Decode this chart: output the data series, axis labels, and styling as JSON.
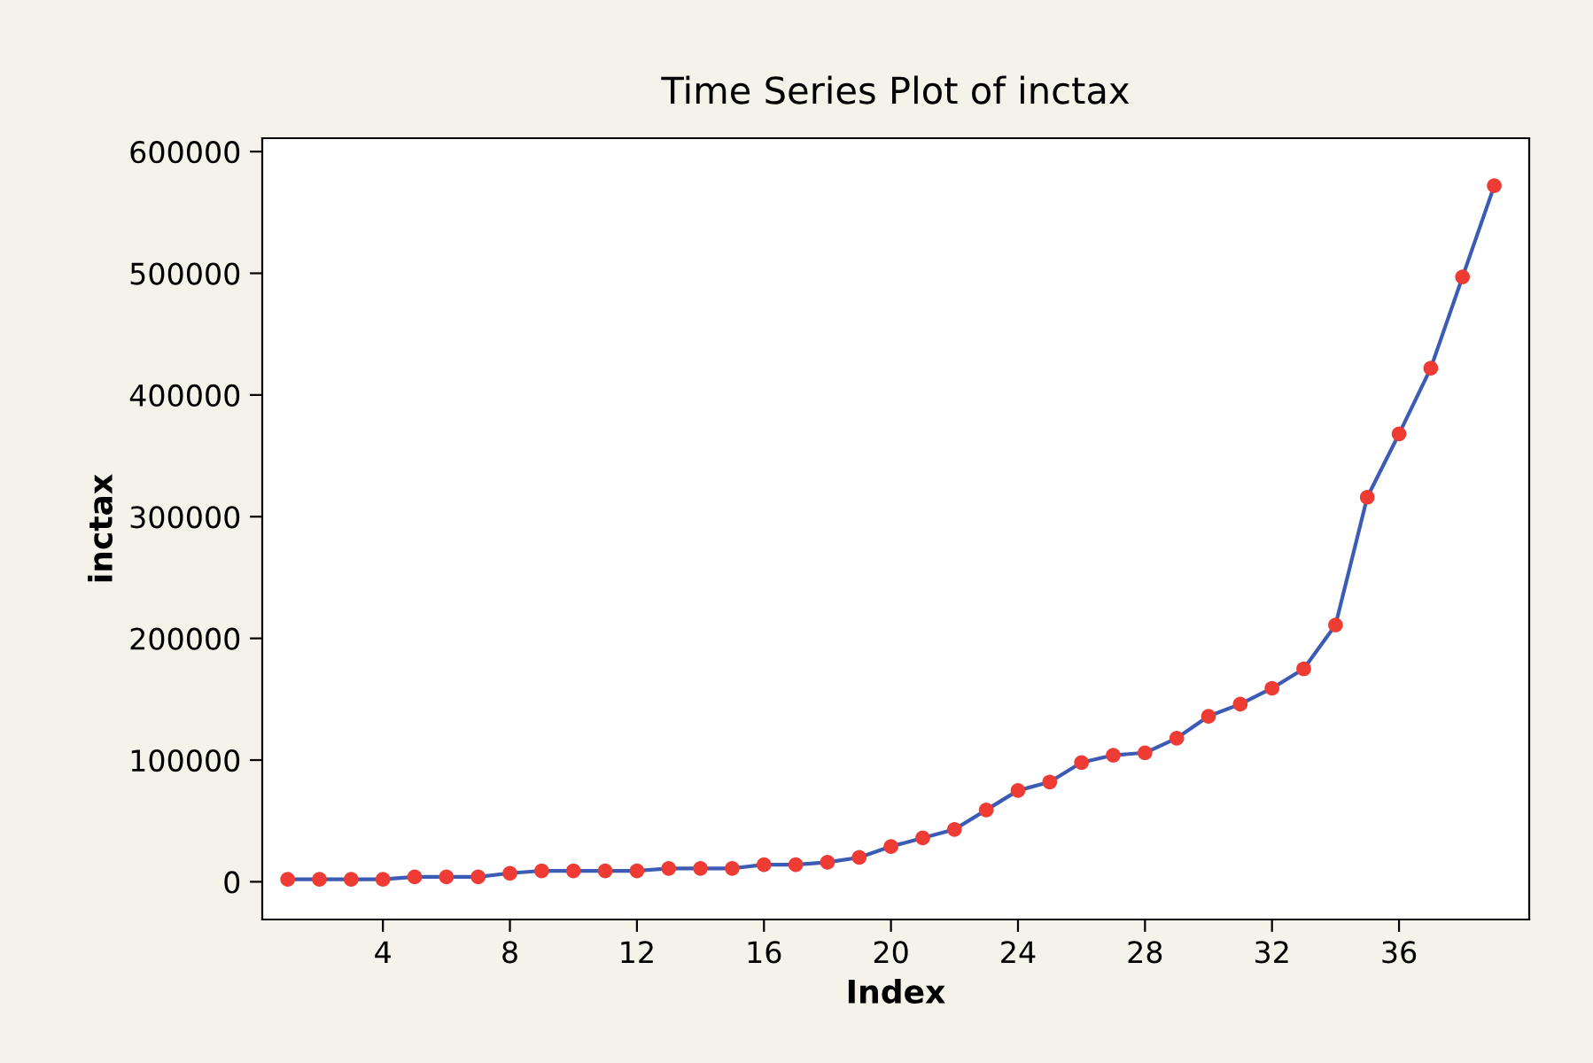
{
  "chart_data": {
    "type": "line",
    "title": "Time Series Plot of inctax",
    "xlabel": "Index",
    "ylabel": "inctax",
    "x": [
      1,
      2,
      3,
      4,
      5,
      6,
      7,
      8,
      9,
      10,
      11,
      12,
      13,
      14,
      15,
      16,
      17,
      18,
      19,
      20,
      21,
      22,
      23,
      24,
      25,
      26,
      27,
      28,
      29,
      30,
      31,
      32,
      33,
      34,
      35,
      36,
      37,
      38,
      39
    ],
    "series": [
      {
        "color": "#3b5bb5",
        "colors": [
          "#ee3b33",
          "#ee3b33",
          "#ee3b33",
          "#ee3b33",
          "#ee3b33",
          "#ee3b33",
          "#ee3b33",
          "#ee3b33",
          "#ee3b33",
          "#ee3b33",
          "#ee3b33",
          "#ee3b33",
          "#ee3b33",
          "#ee3b33",
          "#ee3b33",
          "#ee3b33",
          "#ee3b33",
          "#ee3b33",
          "#ee3b33",
          "#ee3b33",
          "#ee3b33",
          "#ee3b33",
          "#ee3b33",
          "#ee3b33",
          "#ee3b33",
          "#ee3b33",
          "#ee3b33",
          "#ee3b33",
          "#ee3b33",
          "#ee3b33",
          "#ee3b33",
          "#ee3b33",
          "#ee3b33",
          "#ee3b33",
          "#ee3b33",
          "#ee3b33",
          "#ee3b33",
          "#ee3b33",
          "#ee3b33"
        ],
        "values": [
          2000,
          2000,
          2000,
          2000,
          4000,
          4000,
          4000,
          7000,
          9000,
          9000,
          9000,
          9000,
          11000,
          11000,
          11000,
          14000,
          14000,
          16000,
          20000,
          29000,
          36000,
          43000,
          59000,
          75000,
          82000,
          98000,
          104000,
          106000,
          118000,
          136000,
          146000,
          159000,
          175000,
          211000,
          316000,
          368000,
          422000,
          497000,
          572000
        ]
      }
    ],
    "xlim": [
      0.2,
      40.1
    ],
    "xticks": [
      4,
      8,
      12,
      16,
      20,
      24,
      28,
      32,
      36
    ],
    "ylim": [
      -31000,
      611000
    ],
    "yticks": [
      0,
      100000,
      200000,
      300000,
      400000,
      500000,
      600000
    ],
    "marker": "circle",
    "line_style": "solid",
    "grid": false,
    "legend": false
  }
}
